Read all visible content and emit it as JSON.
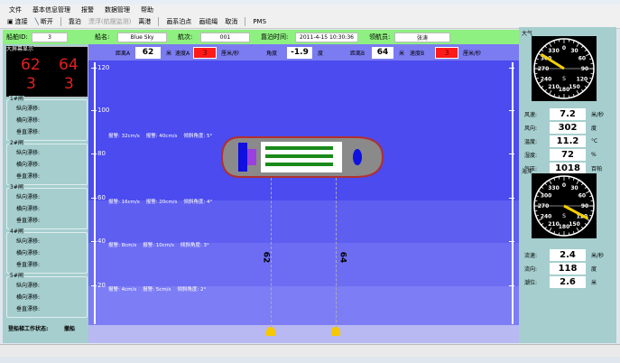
{
  "menu": [
    "文件",
    "基本信息管理",
    "报警",
    "数据管理",
    "帮助"
  ],
  "toolbar": {
    "connect": "连接",
    "disconnect": "断开",
    "berth": "靠泊",
    "drift": "漂浮(航摆监测)",
    "depart": "离港",
    "series_points": "画系泊点",
    "draw_cable": "画缆绳",
    "cancel": "取消",
    "pms": "PMS"
  },
  "info": {
    "ship_id_label": "船舶ID:",
    "ship_id": "3",
    "ship_name_label": "船名:",
    "ship_name": "Blue Sky",
    "voyage_label": "航次:",
    "voyage": "001",
    "berth_time_label": "靠泊时间:",
    "berth_time": "2011-4-15 10:30:36",
    "pilot_label": "领航员:",
    "pilot": "张涛"
  },
  "left": {
    "display_title": "大屏幕显示",
    "display": {
      "a_dist": "62",
      "b_dist": "64",
      "a_speed": "3",
      "b_speed": "3"
    },
    "groups": [
      {
        "title": "1#闸"
      },
      {
        "title": "2#闸"
      },
      {
        "title": "3#闸"
      },
      {
        "title": "4#闸"
      },
      {
        "title": "5#闸"
      }
    ],
    "rows": [
      "纵向漂移:",
      "横向漂移:",
      "垂直漂移:"
    ],
    "status_label": "登船梯工作状态:",
    "status_value": "撤船"
  },
  "main": {
    "dist_a_label": "距离A",
    "dist_a": "62",
    "dist_unit": "米",
    "speed_a_label": "速度A",
    "speed_a": "3",
    "speed_unit": "厘米/秒",
    "angle_label": "角度",
    "angle": "-1.9",
    "angle_unit": "度",
    "dist_b_label": "距离B",
    "dist_b": "64",
    "speed_b_label": "速度B",
    "speed_b": "3",
    "ruler_ticks": [
      "120",
      "100",
      "80",
      "60",
      "40",
      "20"
    ],
    "alarms": [
      "报警: 32cm/s    报警: 40cm/s    倾斜角度: 5°",
      "报警: 16cm/s    报警: 20cm/s    倾斜角度: 4°",
      "报警: 8cm/s    报警: 10cm/s    倾斜角度: 3°",
      "报警: 4cm/s    报警: 5cm/s    倾斜角度: 2°"
    ],
    "line_a_label": "62",
    "line_b_label": "64",
    "colors": {
      "ship_hull": "#8a8a8a",
      "ship_border": "#b03030",
      "deck": "#ffffff",
      "stripe": "#1a8a1a",
      "marker": "#f5c800"
    }
  },
  "right": {
    "atmos_title": "大气",
    "ocean_title": "海洋",
    "dial_labels": [
      "0",
      "30",
      "60",
      "90",
      "120",
      "150",
      "180",
      "210",
      "240",
      "270",
      "300",
      "330"
    ],
    "wind_dir_deg": 302,
    "current_dir_deg": 118,
    "atmos": [
      {
        "label": "风速:",
        "value": "7.2",
        "unit": "米/秒"
      },
      {
        "label": "风向:",
        "value": "302",
        "unit": "度"
      },
      {
        "label": "温度:",
        "value": "11.2",
        "unit": "°C"
      },
      {
        "label": "湿度:",
        "value": "72",
        "unit": "%"
      },
      {
        "label": "气压:",
        "value": "1018",
        "unit": "百帕"
      }
    ],
    "ocean": [
      {
        "label": "流速:",
        "value": "2.4",
        "unit": "米/秒"
      },
      {
        "label": "流向:",
        "value": "118",
        "unit": "度"
      },
      {
        "label": "潮位:",
        "value": "2.6",
        "unit": "米"
      }
    ]
  }
}
